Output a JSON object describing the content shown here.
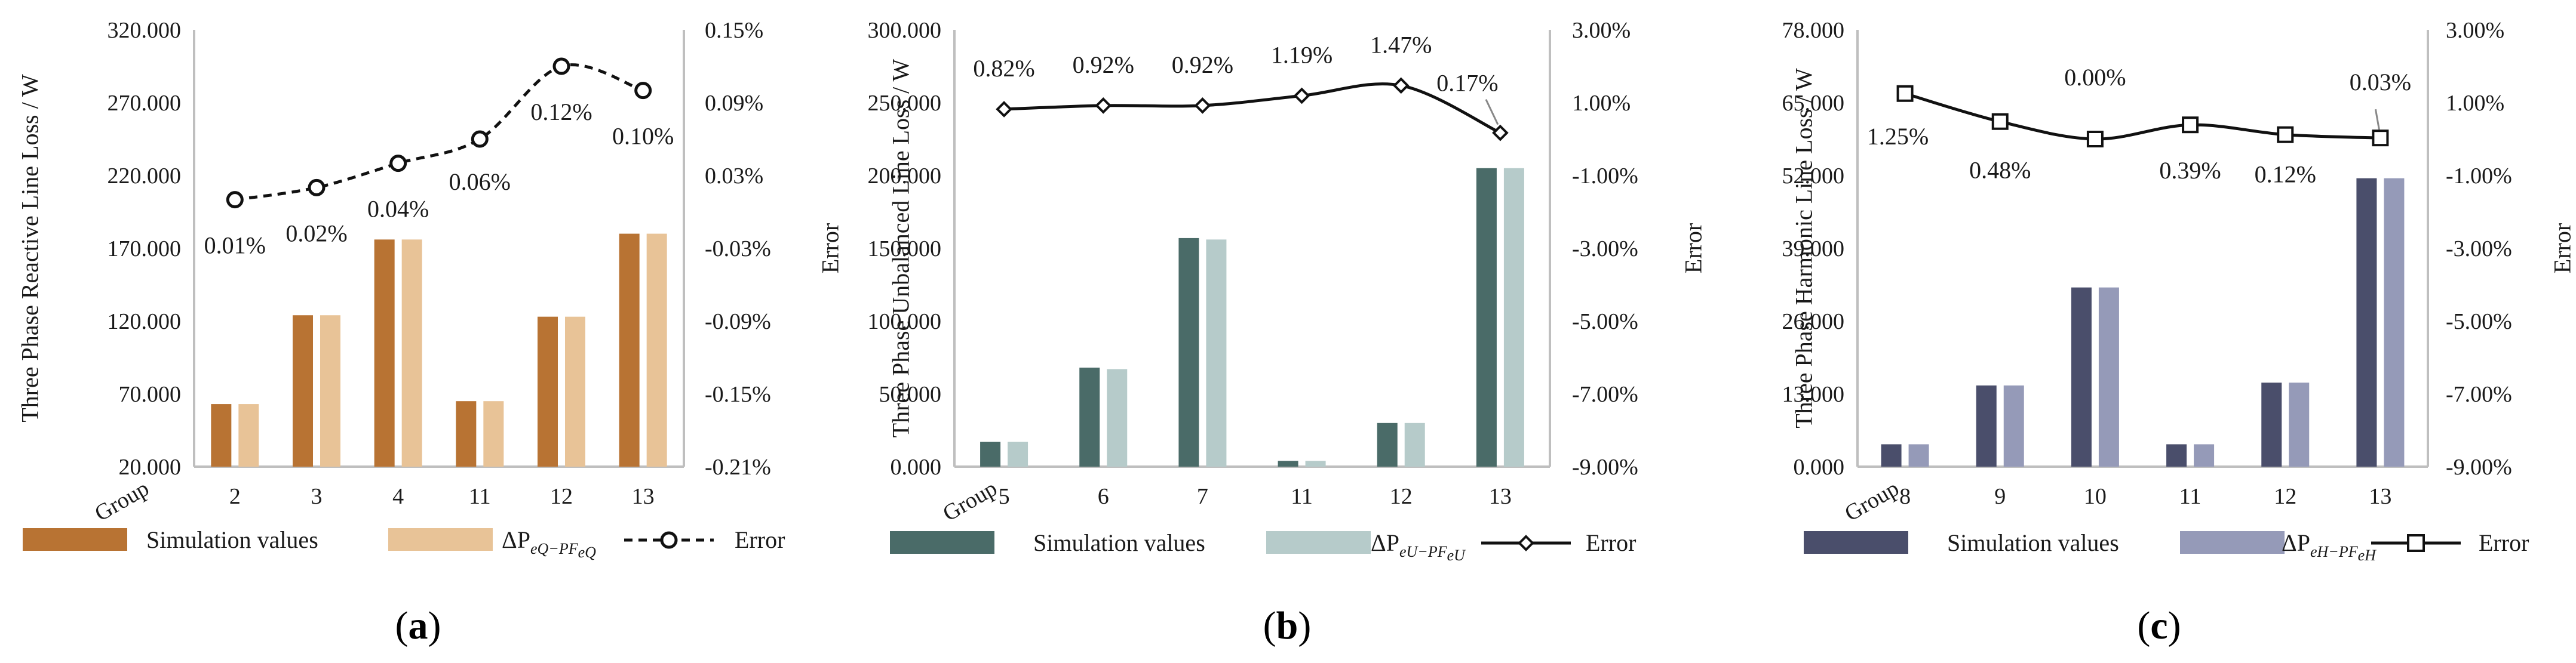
{
  "chart_data": [
    {
      "type": "bar",
      "panel": "(a)",
      "caption_letter": "a",
      "ylabel": "Three Phase Reactive Line Loss / W",
      "y2label": "Error",
      "xlabel": "Group",
      "categories": [
        "2",
        "3",
        "4",
        "11",
        "12",
        "13"
      ],
      "ylim": [
        20,
        320
      ],
      "yticks": [
        "20.000",
        "70.000",
        "120.000",
        "170.000",
        "220.000",
        "270.000",
        "320.000"
      ],
      "y2lim": [
        -0.21,
        0.15
      ],
      "y2ticks": [
        "-0.21%",
        "-0.15%",
        "-0.09%",
        "-0.03%",
        "0.03%",
        "0.09%",
        "0.15%"
      ],
      "series": [
        {
          "name": "Simulation values",
          "color": "#b87333",
          "values": [
            63,
            124,
            176,
            65,
            123,
            180
          ]
        },
        {
          "name": "ΔP",
          "sub": "eQ−PF",
          "subsub": "eQ",
          "color": "#e8c397",
          "values": [
            63,
            124,
            176,
            65,
            123,
            180
          ]
        }
      ],
      "error": {
        "name": "Error",
        "style": "dashed-circle",
        "values": [
          0.01,
          0.02,
          0.04,
          0.06,
          0.12,
          0.1
        ],
        "labels": [
          "0.01%",
          "0.02%",
          "0.04%",
          "0.06%",
          "0.12%",
          "0.10%"
        ]
      }
    },
    {
      "type": "bar",
      "panel": "(b)",
      "caption_letter": "b",
      "ylabel": "Three Phase Unbalanced Line Loss / W",
      "y2label": "Error",
      "xlabel": "Group",
      "categories": [
        "5",
        "6",
        "7",
        "11",
        "12",
        "13"
      ],
      "ylim": [
        0,
        300
      ],
      "yticks": [
        "0.000",
        "50.000",
        "100.000",
        "150.000",
        "200.000",
        "250.000",
        "300.000"
      ],
      "y2lim": [
        -9,
        3
      ],
      "y2ticks": [
        "-9.00%",
        "-7.00%",
        "-5.00%",
        "-3.00%",
        "-1.00%",
        "1.00%",
        "3.00%"
      ],
      "series": [
        {
          "name": "Simulation values",
          "color": "#4a6b68",
          "values": [
            17,
            68,
            157,
            4,
            30,
            205
          ]
        },
        {
          "name": "ΔP",
          "sub": "eU−PF",
          "subsub": "eU",
          "color": "#b6cbca",
          "values": [
            17,
            67,
            156,
            4,
            30,
            205
          ]
        }
      ],
      "error": {
        "name": "Error",
        "style": "solid-diamond",
        "values": [
          0.82,
          0.92,
          0.92,
          1.19,
          1.47,
          0.17
        ],
        "labels": [
          "0.82%",
          "0.92%",
          "0.92%",
          "1.19%",
          "1.47%",
          "0.17%"
        ]
      }
    },
    {
      "type": "bar",
      "panel": "(c)",
      "caption_letter": "c",
      "ylabel": "Three Phase Harmonic Line Loss / W",
      "y2label": "Error",
      "xlabel": "Group",
      "categories": [
        "8",
        "9",
        "10",
        "11",
        "12",
        "13"
      ],
      "ylim": [
        0,
        78
      ],
      "yticks": [
        "0.000",
        "13.000",
        "26.000",
        "39.000",
        "52.000",
        "65.000",
        "78.000"
      ],
      "y2lim": [
        -9,
        3
      ],
      "y2ticks": [
        "-9.00%",
        "-7.00%",
        "-5.00%",
        "-3.00%",
        "-1.00%",
        "1.00%",
        "3.00%"
      ],
      "series": [
        {
          "name": "Simulation values",
          "color": "#4a4e6b",
          "values": [
            4,
            14.5,
            32,
            4,
            15,
            51.5
          ]
        },
        {
          "name": "ΔP",
          "sub": "eH−PF",
          "subsub": "eH",
          "color": "#959ab8",
          "values": [
            4,
            14.5,
            32,
            4,
            15,
            51.5
          ]
        }
      ],
      "error": {
        "name": "Error",
        "style": "solid-square",
        "values": [
          1.25,
          0.48,
          0.0,
          0.39,
          0.12,
          0.03
        ],
        "labels": [
          "1.25%",
          "0.48%",
          "0.00%",
          "0.39%",
          "0.12%",
          "0.03%"
        ]
      }
    }
  ]
}
